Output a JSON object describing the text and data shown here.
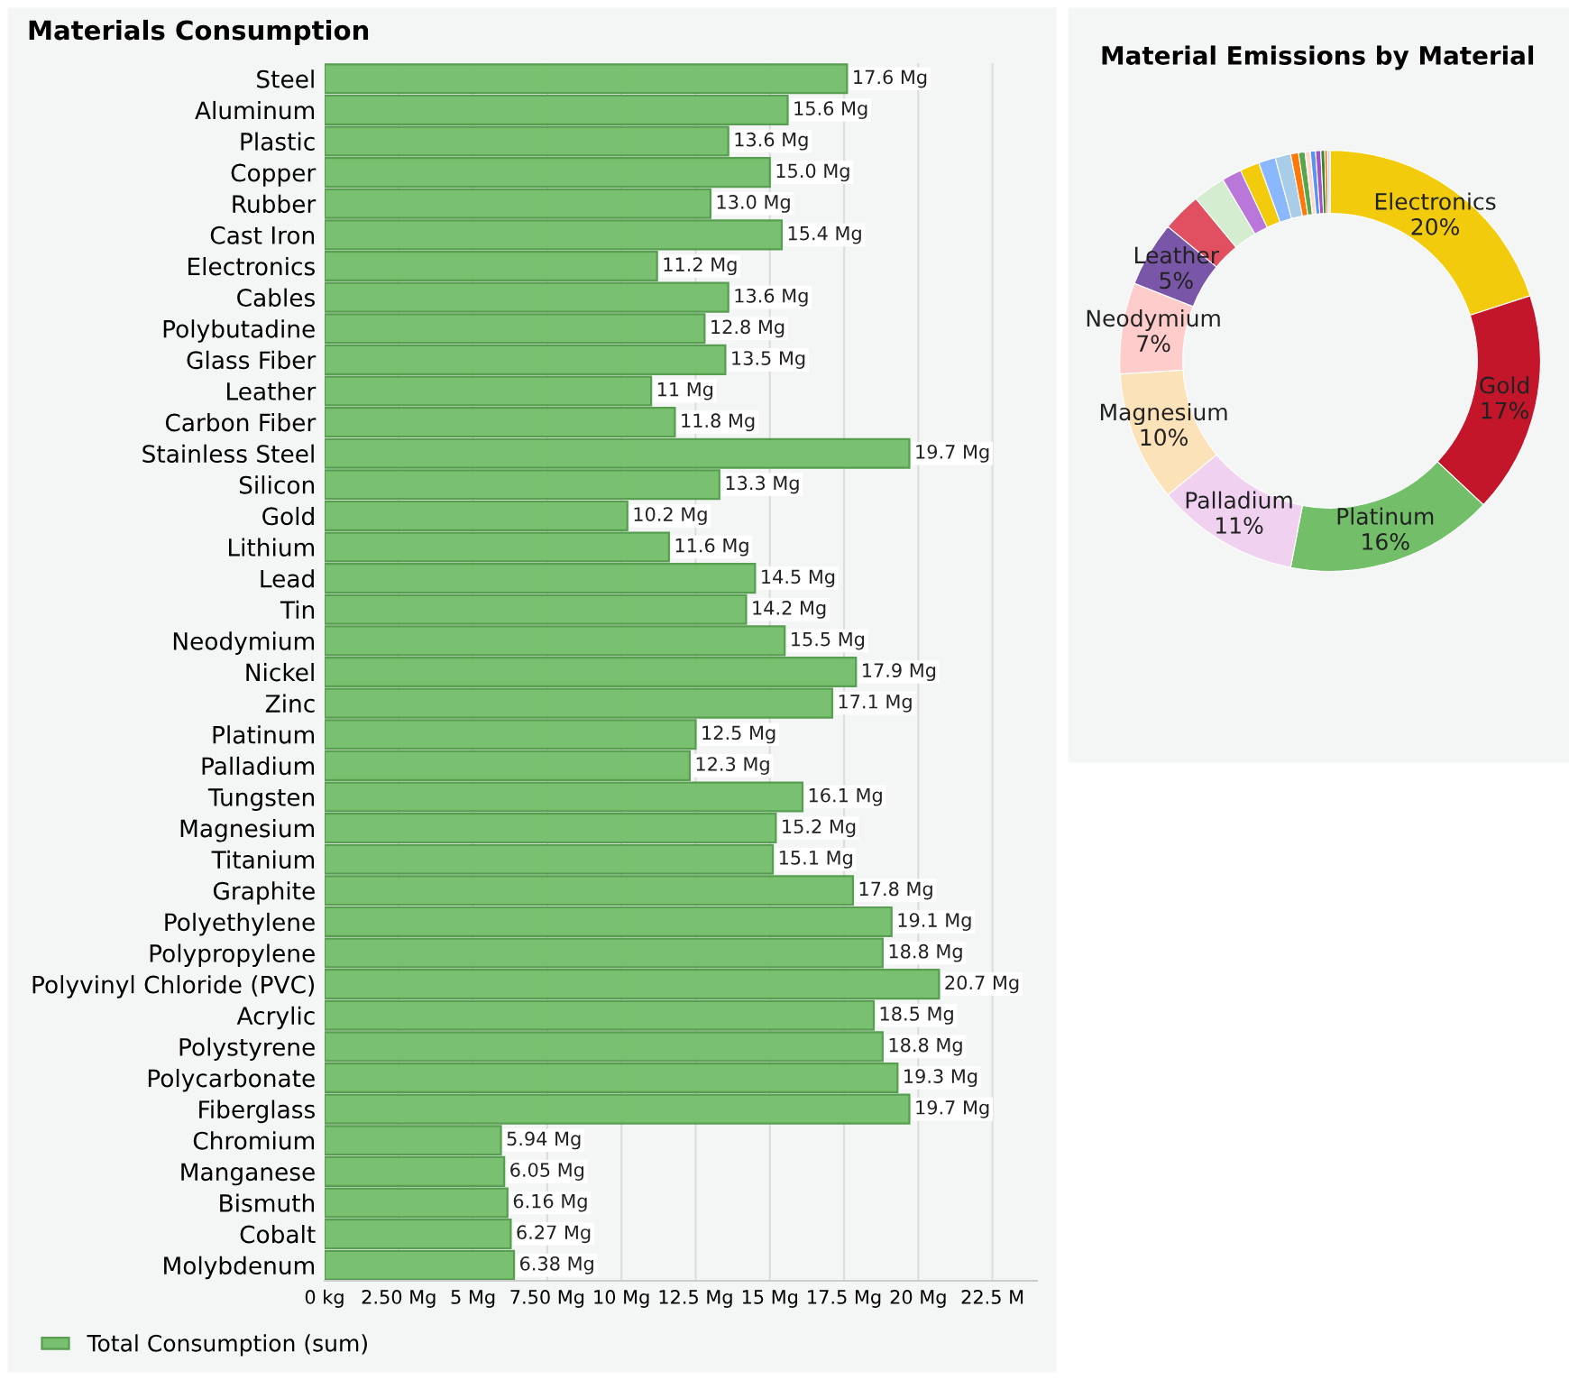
{
  "chart_data": [
    {
      "type": "bar",
      "orientation": "horizontal",
      "title": "Materials Consumption",
      "categories": [
        "Steel",
        "Aluminum",
        "Plastic",
        "Copper",
        "Rubber",
        "Cast Iron",
        "Electronics",
        "Cables",
        "Polybutadine",
        "Glass Fiber",
        "Leather",
        "Carbon Fiber",
        "Stainless Steel",
        "Silicon",
        "Gold",
        "Lithium",
        "Lead",
        "Tin",
        "Neodymium",
        "Nickel",
        "Zinc",
        "Platinum",
        "Palladium",
        "Tungsten",
        "Magnesium",
        "Titanium",
        "Graphite",
        "Polyethylene",
        "Polypropylene",
        "Polyvinyl Chloride (PVC)",
        "Acrylic",
        "Polystyrene",
        "Polycarbonate",
        "Fiberglass",
        "Chromium",
        "Manganese",
        "Bismuth",
        "Cobalt",
        "Molybdenum"
      ],
      "series": [
        {
          "name": "Total Consumption (sum)",
          "color": "#73bf69",
          "values": [
            17.6,
            15.6,
            13.6,
            15.0,
            13.0,
            15.4,
            11.2,
            13.6,
            12.8,
            13.5,
            11,
            11.8,
            19.7,
            13.3,
            10.2,
            11.6,
            14.5,
            14.2,
            15.5,
            17.9,
            17.1,
            12.5,
            12.3,
            16.1,
            15.2,
            15.1,
            17.8,
            19.1,
            18.8,
            20.7,
            18.5,
            18.8,
            19.3,
            19.7,
            5.94,
            6.05,
            6.16,
            6.27,
            6.38
          ],
          "value_labels": [
            "17.6 Mg",
            "15.6 Mg",
            "13.6 Mg",
            "15.0 Mg",
            "13.0 Mg",
            "15.4 Mg",
            "11.2 Mg",
            "13.6 Mg",
            "12.8 Mg",
            "13.5 Mg",
            "11 Mg",
            "11.8 Mg",
            "19.7 Mg",
            "13.3 Mg",
            "10.2 Mg",
            "11.6 Mg",
            "14.5 Mg",
            "14.2 Mg",
            "15.5 Mg",
            "17.9 Mg",
            "17.1 Mg",
            "12.5 Mg",
            "12.3 Mg",
            "16.1 Mg",
            "15.2 Mg",
            "15.1 Mg",
            "17.8 Mg",
            "19.1 Mg",
            "18.8 Mg",
            "20.7 Mg",
            "18.5 Mg",
            "18.8 Mg",
            "19.3 Mg",
            "19.7 Mg",
            "5.94 Mg",
            "6.05 Mg",
            "6.16 Mg",
            "6.27 Mg",
            "6.38 Mg"
          ]
        }
      ],
      "xlim": [
        0,
        24
      ],
      "xticks": [
        {
          "value": 0,
          "label": "0 kg"
        },
        {
          "value": 2.5,
          "label": "2.50 Mg"
        },
        {
          "value": 5,
          "label": "5 Mg"
        },
        {
          "value": 7.5,
          "label": "7.50 Mg"
        },
        {
          "value": 10,
          "label": "10 Mg"
        },
        {
          "value": 12.5,
          "label": "12.5 Mg"
        },
        {
          "value": 15,
          "label": "15 Mg"
        },
        {
          "value": 17.5,
          "label": "17.5 Mg"
        },
        {
          "value": 20,
          "label": "20 Mg"
        },
        {
          "value": 22.5,
          "label": "22.5 M"
        }
      ],
      "grid": "x",
      "legend": "bottom left"
    },
    {
      "type": "donut",
      "title": "Material Emissions by Material",
      "categories": [
        "Electronics",
        "Gold",
        "Platinum",
        "Palladium",
        "Magnesium",
        "Neodymium",
        "Leather",
        null,
        null,
        null,
        null,
        null,
        null,
        null,
        null,
        null,
        null,
        null,
        null,
        null,
        null
      ],
      "values": [
        20,
        17,
        16,
        11,
        10,
        7,
        5,
        3,
        2.5,
        1.5,
        1.5,
        1.3,
        1.2,
        0.6,
        0.5,
        0.4,
        0.4,
        0.4,
        0.3,
        0.2,
        0.2
      ],
      "colors": [
        "#f2cc0c",
        "#c4162a",
        "#73bf69",
        "#f0d1f0",
        "#fce2b8",
        "#ffcccc",
        "#7a56a8",
        "#e05060",
        "#d4ecd0",
        "#b877d9",
        "#f2cc0c",
        "#8ab8ff",
        "#a9cce8",
        "#ff780a",
        "#56a64b",
        "#ffd8d0",
        "#5794f2",
        "#a352cc",
        "#37872d",
        "#fa6400",
        "#c0d8ff"
      ],
      "value_labels": [
        "20%",
        "17%",
        "16%",
        "11%",
        "10%",
        "7%",
        "5%",
        null,
        null,
        null,
        null,
        null,
        null,
        null,
        null,
        null,
        null,
        null,
        null,
        null,
        null
      ]
    }
  ]
}
